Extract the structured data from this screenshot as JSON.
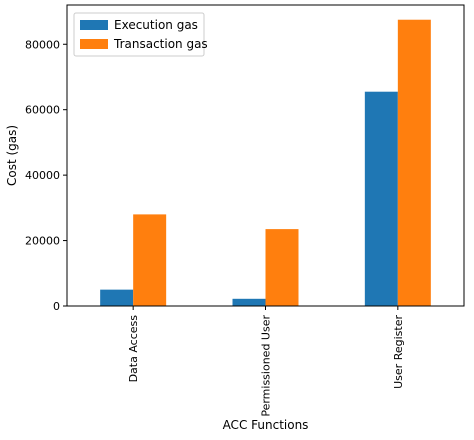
{
  "chart_data": {
    "type": "bar",
    "title": "",
    "xlabel": "ACC Functions",
    "ylabel": "Cost (gas)",
    "categories": [
      "Data Access",
      "Permissioned User",
      "User Register"
    ],
    "series": [
      {
        "name": "Execution gas",
        "values": [
          5000,
          2200,
          65500
        ],
        "color": "#1f77b4"
      },
      {
        "name": "Transaction gas",
        "values": [
          28000,
          23500,
          87500
        ],
        "color": "#ff7f0e"
      }
    ],
    "ylim": [
      0,
      92000
    ],
    "yticks": [
      0,
      20000,
      40000,
      60000,
      80000
    ],
    "ytick_labels": [
      "0",
      "20000",
      "40000",
      "60000",
      "80000"
    ],
    "grid": false,
    "legend_position": "top-left"
  }
}
